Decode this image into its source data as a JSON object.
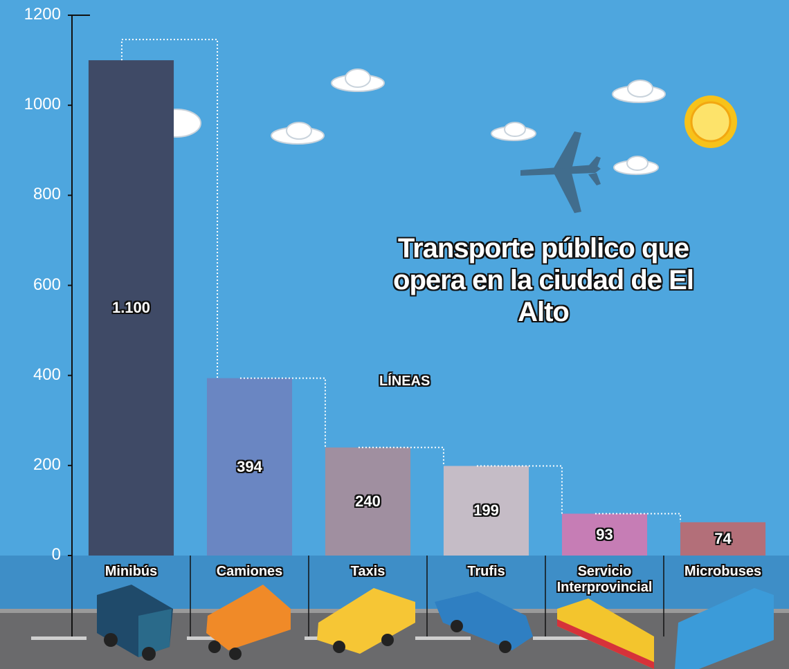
{
  "chart_data": {
    "type": "bar",
    "title": "Transporte público que opera en la ciudad de El Alto",
    "annotation": "LÍNEAS",
    "categories": [
      "Minibús",
      "Camiones",
      "Taxis",
      "Trufis",
      "Servicio Interprovincial",
      "Microbuses"
    ],
    "values": [
      1100,
      394,
      240,
      199,
      93,
      74
    ],
    "value_labels": [
      "1.100",
      "394",
      "240",
      "199",
      "93",
      "74"
    ],
    "colors": [
      "#3f4a66",
      "#6a86c2",
      "#a08fa0",
      "#c5bcc6",
      "#c67db5",
      "#b36f79"
    ],
    "ylim": [
      0,
      1200
    ],
    "yticks": [
      0,
      200,
      400,
      600,
      800,
      1000,
      1200
    ]
  }
}
